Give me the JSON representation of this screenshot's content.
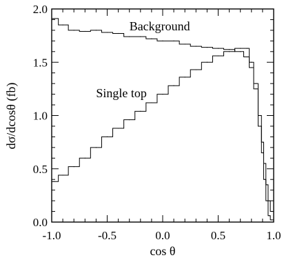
{
  "chart_data": {
    "type": "line",
    "title": "",
    "xlabel": "cos θ",
    "ylabel": "dσ/dcosθ (fb)",
    "xlim": [
      -1.0,
      1.0
    ],
    "ylim": [
      0.0,
      2.0
    ],
    "x_ticks": [
      -1.0,
      -0.5,
      0.0,
      0.5,
      1.0
    ],
    "x_tick_labels": [
      "-1.0",
      "-0.5",
      "0.0",
      "0.5",
      "1.0"
    ],
    "y_ticks": [
      0.0,
      0.5,
      1.0,
      1.5,
      2.0
    ],
    "y_tick_labels": [
      "0.0",
      "0.5",
      "1.0",
      "1.5",
      "2.0"
    ],
    "grid": false,
    "legend": "none",
    "step_style": "histogram",
    "series": [
      {
        "name": "Background",
        "color": "#000000",
        "x": [
          -0.98,
          -0.9,
          -0.8,
          -0.7,
          -0.6,
          -0.5,
          -0.4,
          -0.3,
          -0.2,
          -0.1,
          0.0,
          0.1,
          0.2,
          0.3,
          0.4,
          0.5,
          0.6,
          0.7,
          0.76,
          0.8,
          0.84,
          0.88,
          0.9,
          0.92,
          0.94,
          0.96,
          0.98
        ],
        "y": [
          1.91,
          1.85,
          1.8,
          1.79,
          1.8,
          1.78,
          1.77,
          1.74,
          1.74,
          1.72,
          1.7,
          1.7,
          1.67,
          1.65,
          1.64,
          1.63,
          1.62,
          1.6,
          1.55,
          1.45,
          1.3,
          1.0,
          0.75,
          0.55,
          0.35,
          0.2,
          0.1
        ]
      },
      {
        "name": "Single top",
        "color": "#000000",
        "x": [
          -0.98,
          -0.9,
          -0.8,
          -0.7,
          -0.6,
          -0.5,
          -0.4,
          -0.3,
          -0.2,
          -0.1,
          0.0,
          0.1,
          0.2,
          0.3,
          0.4,
          0.5,
          0.6,
          0.7,
          0.76,
          0.8,
          0.84,
          0.88,
          0.9,
          0.92,
          0.94,
          0.96,
          0.98
        ],
        "y": [
          0.38,
          0.44,
          0.52,
          0.6,
          0.7,
          0.8,
          0.88,
          0.96,
          1.04,
          1.12,
          1.2,
          1.28,
          1.36,
          1.43,
          1.5,
          1.56,
          1.6,
          1.63,
          1.63,
          1.5,
          1.25,
          0.9,
          0.65,
          0.4,
          0.2,
          0.06,
          0.02
        ]
      }
    ],
    "annotations": [
      {
        "text": "Background",
        "x": -0.3,
        "y": 1.8
      },
      {
        "text": "Single top",
        "x": -0.6,
        "y": 1.17
      }
    ]
  }
}
